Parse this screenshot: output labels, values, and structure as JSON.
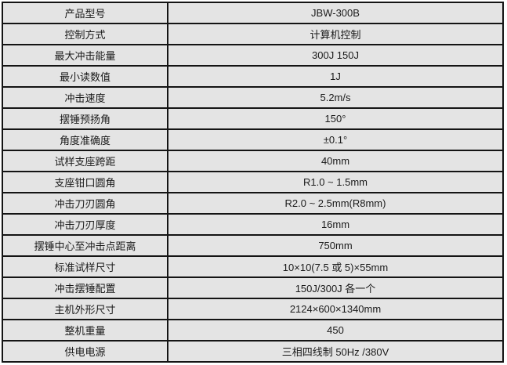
{
  "colors": {
    "page_bg": "#ffffff",
    "cell_bg": "#e4e4e4",
    "border": "#141414",
    "text": "#1a1a1a"
  },
  "table": {
    "rows": [
      {
        "label": "产品型号",
        "value": "JBW-300B"
      },
      {
        "label": "控制方式",
        "value": "计算机控制"
      },
      {
        "label": "最大冲击能量",
        "value": "300J 150J"
      },
      {
        "label": "最小读数值",
        "value": "1J"
      },
      {
        "label": "冲击速度",
        "value": "5.2m/s"
      },
      {
        "label": "摆锤预扬角",
        "value": "150°"
      },
      {
        "label": "角度准确度",
        "value": "±0.1°"
      },
      {
        "label": "试样支座跨距",
        "value": "40mm"
      },
      {
        "label": "支座钳口圆角",
        "value": "R1.0 ~ 1.5mm"
      },
      {
        "label": "冲击刀刃圆角",
        "value": "R2.0 ~ 2.5mm(R8mm)"
      },
      {
        "label": "冲击刀刃厚度",
        "value": "16mm"
      },
      {
        "label": "摆锤中心至冲击点距离",
        "value": "750mm"
      },
      {
        "label": "标准试样尺寸",
        "value": "10×10(7.5 或 5)×55mm"
      },
      {
        "label": "冲击摆锤配置",
        "value": "150J/300J 各一个"
      },
      {
        "label": "主机外形尺寸",
        "value": "2124×600×1340mm"
      },
      {
        "label": "整机重量",
        "value": "450"
      },
      {
        "label": "供电电源",
        "value": "三相四线制 50Hz /380V"
      }
    ]
  }
}
